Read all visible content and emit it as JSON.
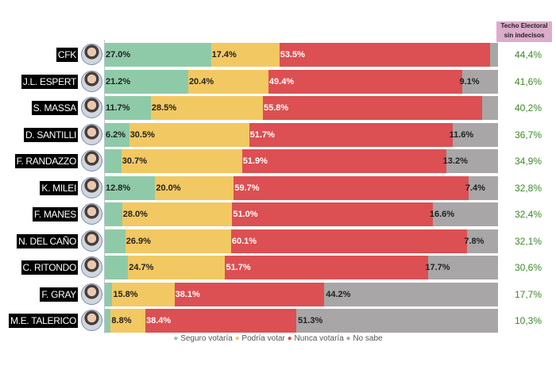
{
  "chart_data": {
    "type": "bar",
    "orientation": "horizontal",
    "stacked": true,
    "xlim": [
      0,
      100
    ],
    "categories": [
      "CFK",
      "J.L. ESPERT",
      "S. MASSA",
      "D. SANTILLI",
      "F. RANDAZZO",
      "K. MILEI",
      "F. MANES",
      "N. DEL CAÑO",
      "C. RITONDO",
      "F. GRAY",
      "M.E.  TALERICO"
    ],
    "series": [
      {
        "name": "Seguro votaría",
        "color": "#8ecaa8",
        "values": [
          27.0,
          21.2,
          11.7,
          6.2,
          4.2,
          12.8,
          4.4,
          5.2,
          5.9,
          1.9,
          1.5
        ],
        "labels": [
          "27.0%",
          "21.2%",
          "11.7%",
          "6.2%",
          "",
          "12.8%",
          "",
          "",
          "",
          "",
          ""
        ]
      },
      {
        "name": "Podría votar",
        "color": "#f2c862",
        "values": [
          17.4,
          20.4,
          28.5,
          30.5,
          30.7,
          20.0,
          28.0,
          26.9,
          24.7,
          15.8,
          8.8
        ],
        "labels": [
          "17.4%",
          "20.4%",
          "28.5%",
          "30.5%",
          "30.7%",
          "20.0%",
          "28.0%",
          "26.9%",
          "24.7%",
          "15.8%",
          "8.8%"
        ]
      },
      {
        "name": "Nunca votaría",
        "color": "#dc4f52",
        "values": [
          53.5,
          49.4,
          55.8,
          51.7,
          51.9,
          59.7,
          51.0,
          60.1,
          51.7,
          38.1,
          38.4
        ],
        "labels": [
          "53.5%",
          "49.4%",
          "55.8%",
          "51.7%",
          "51.9%",
          "59.7%",
          "51.0%",
          "60.1%",
          "51.7%",
          "38.1%",
          "38.4%"
        ]
      },
      {
        "name": "No sabe",
        "color": "#a8a6a6",
        "values": [
          2.1,
          9.1,
          4.0,
          11.6,
          13.2,
          7.4,
          16.6,
          7.8,
          17.7,
          44.2,
          51.3
        ],
        "labels": [
          "",
          "9.1%",
          "",
          "11.6%",
          "13.2%",
          "7.4%",
          "16.6%",
          "7.8%",
          "17.7%",
          "44.2%",
          "51.3%"
        ]
      }
    ],
    "side_column": {
      "title_line1": "Techo Electoral",
      "title_line2": "sin indecisos",
      "values": [
        "44,4%",
        "41,6%",
        "40,2%",
        "36,7%",
        "34,9%",
        "32,8%",
        "32,4%",
        "32,1%",
        "30,6%",
        "17,7%",
        "10,3%"
      ],
      "color": "#3a8a26"
    },
    "legend_position": "bottom"
  }
}
